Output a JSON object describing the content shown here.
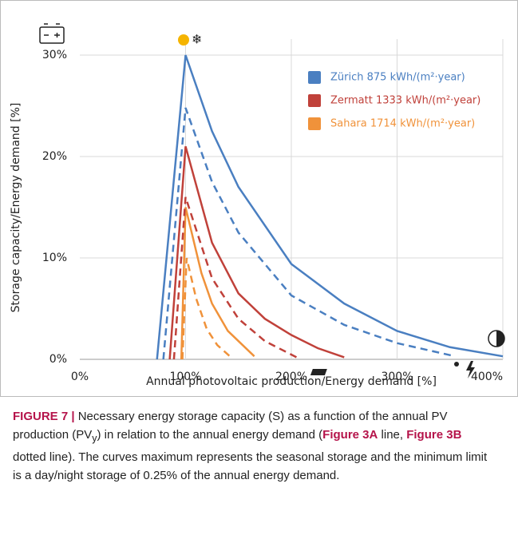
{
  "chart_data": {
    "type": "line",
    "y_label": "Storage capacity/Energy demand [%]",
    "x_label": "Annual photovoltaic production/Energy demand [%]",
    "xlim": [
      0,
      400
    ],
    "xticks": [
      {
        "value": 0,
        "label": "0%"
      },
      {
        "value": 100,
        "label": "100%"
      },
      {
        "value": 200,
        "label": "200%"
      },
      {
        "value": 300,
        "label": "300%"
      },
      {
        "value": 400,
        "label": "400%"
      }
    ],
    "ylim": [
      0,
      30
    ],
    "yticks": [
      {
        "value": 0,
        "label": "0%"
      },
      {
        "value": 10,
        "label": "10%"
      },
      {
        "value": 20,
        "label": "20%"
      },
      {
        "value": 30,
        "label": "30%"
      }
    ],
    "grid": true,
    "series": [
      {
        "name": "Sahara 1714 kWh/(m²·year)",
        "color": "#f0923a",
        "line": {
          "x": [
            96,
            100,
            115,
            125,
            140,
            165
          ],
          "values": [
            0,
            15,
            8.5,
            5.5,
            2.8,
            0.3
          ]
        },
        "dashed": {
          "x": [
            97,
            101,
            110,
            120,
            130,
            143
          ],
          "values": [
            0,
            10,
            6,
            3,
            1.4,
            0.2
          ]
        }
      },
      {
        "name": "Zermatt 1333 kWh/(m²·year)",
        "color": "#c0413a",
        "line": {
          "x": [
            85,
            100,
            125,
            150,
            175,
            200,
            225,
            250
          ],
          "values": [
            0,
            21,
            11.5,
            6.5,
            4,
            2.4,
            1.1,
            0.2
          ]
        },
        "dashed": {
          "x": [
            89,
            100,
            125,
            150,
            175,
            205
          ],
          "values": [
            0,
            16,
            8,
            4,
            1.8,
            0.2
          ]
        }
      },
      {
        "name": "Zürich 875 kWh/(m²·year)",
        "color": "#4a7fc1",
        "line": {
          "x": [
            73,
            100,
            125,
            150,
            200,
            250,
            300,
            350,
            400
          ],
          "values": [
            0,
            30,
            22.5,
            17,
            9.4,
            5.5,
            2.8,
            1.2,
            0.3
          ]
        },
        "dashed": {
          "x": [
            79,
            100,
            125,
            150,
            200,
            250,
            300,
            355
          ],
          "values": [
            0,
            24.8,
            17.5,
            12.5,
            6.3,
            3.4,
            1.6,
            0.3
          ]
        }
      }
    ]
  },
  "caption": [
    {
      "text": "FIGURE 7 |",
      "bold": true
    },
    {
      "text": " Necessary energy storage capacity (S) as a function of the annual PV production (PV",
      "bold": false
    },
    {
      "text": "y",
      "bold": false,
      "sub": true
    },
    {
      "text": ") in relation to the annual energy demand (",
      "bold": false
    },
    {
      "text": "Figure 3A",
      "bold": true
    },
    {
      "text": " line, ",
      "bold": false
    },
    {
      "text": "Figure 3B",
      "bold": true
    },
    {
      "text": " dotted line). The curves maximum represents the seasonal storage and the minimum limit is a day/night storage of 0.25% of the annual energy demand.",
      "bold": false
    }
  ]
}
